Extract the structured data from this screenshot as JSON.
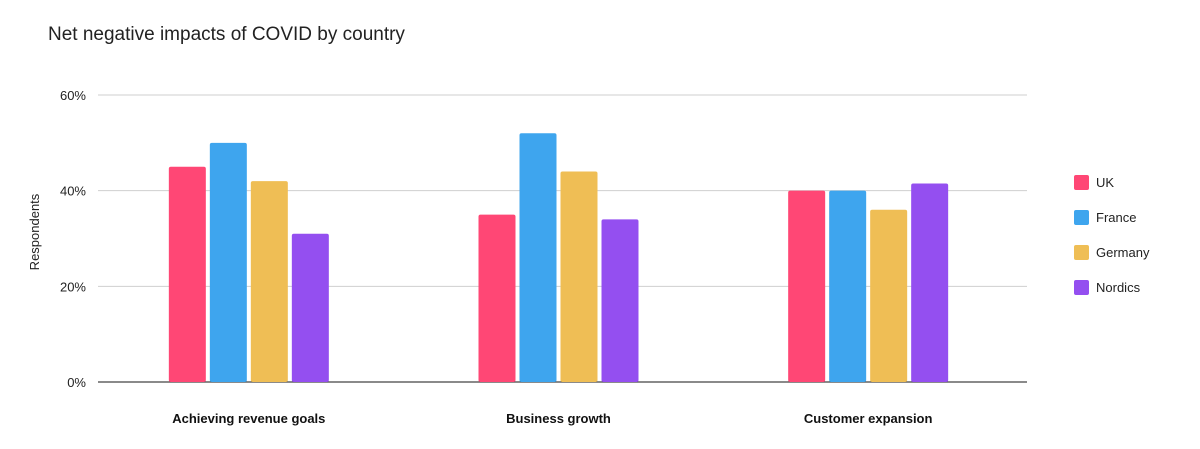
{
  "chart_data": {
    "type": "bar",
    "title": "Net negative impacts of COVID by country",
    "ylabel": "Respondents",
    "xlabel": "",
    "categories": [
      "Achieving revenue goals",
      "Business growth",
      "Customer expansion"
    ],
    "series": [
      {
        "name": "UK",
        "color": "#ff4775",
        "values": [
          45,
          35,
          40
        ]
      },
      {
        "name": "France",
        "color": "#3ea5ee",
        "values": [
          50,
          52,
          40
        ]
      },
      {
        "name": "Germany",
        "color": "#efbe55",
        "values": [
          42,
          44,
          36
        ]
      },
      {
        "name": "Nordics",
        "color": "#944ff0",
        "values": [
          31,
          34,
          41.5
        ]
      }
    ],
    "ylim": [
      0,
      60
    ],
    "yticks": [
      0,
      20,
      40,
      60
    ],
    "ytick_labels": [
      "0%",
      "20%",
      "40%",
      "60%"
    ],
    "grid": true,
    "legend_position": "right"
  }
}
